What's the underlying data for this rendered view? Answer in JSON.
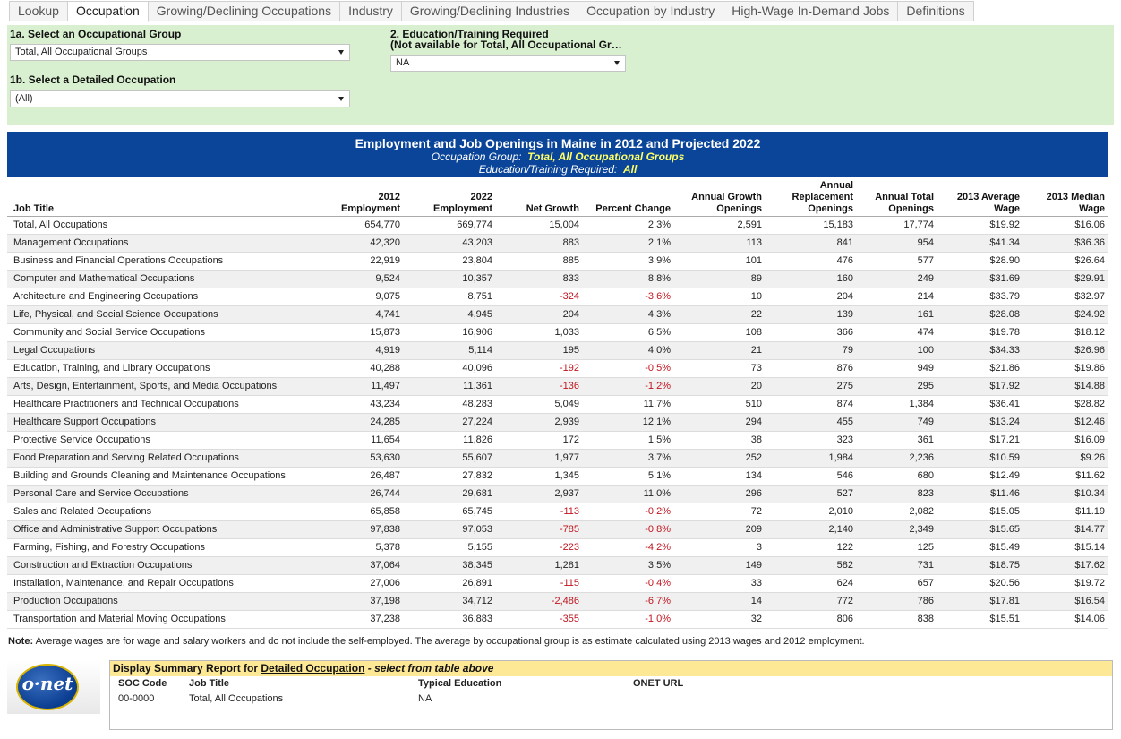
{
  "tabs": [
    "Lookup",
    "Occupation",
    "Growing/Declining Occupations",
    "Industry",
    "Growing/Declining Industries",
    "Occupation by Industry",
    "High-Wage In-Demand Jobs",
    "Definitions"
  ],
  "active_tab": "Occupation",
  "filters": {
    "group_label": "1a. Select an Occupational Group",
    "group_value": "Total, All Occupational Groups",
    "detail_label": "1b. Select a Detailed Occupation",
    "detail_value": "(All)",
    "edu_label_1": "2. Education/Training Required",
    "edu_label_2": "(Not available for Total, All Occupational Gr…",
    "edu_value": "NA"
  },
  "banner": {
    "title": "Employment and Job Openings in Maine in 2012 and Projected 2022",
    "group_prefix": "Occupation Group:",
    "group_value": "Total, All Occupational Groups",
    "edu_prefix": "Education/Training Required:",
    "edu_value": "All"
  },
  "columns": [
    [
      "Job Title"
    ],
    [
      "2012",
      "Employment"
    ],
    [
      "2022",
      "Employment"
    ],
    [
      "Net Growth"
    ],
    [
      "Percent Change"
    ],
    [
      "Annual Growth",
      "Openings"
    ],
    [
      "Annual",
      "Replacement",
      "Openings"
    ],
    [
      "Annual Total",
      "Openings"
    ],
    [
      "2013 Average",
      "Wage"
    ],
    [
      "2013 Median",
      "Wage"
    ]
  ],
  "rows": [
    [
      "Total, All Occupations",
      "654,770",
      "669,774",
      "15,004",
      "2.3%",
      "2,591",
      "15,183",
      "17,774",
      "$19.92",
      "$16.06"
    ],
    [
      "Management Occupations",
      "42,320",
      "43,203",
      "883",
      "2.1%",
      "113",
      "841",
      "954",
      "$41.34",
      "$36.36"
    ],
    [
      "Business and Financial Operations Occupations",
      "22,919",
      "23,804",
      "885",
      "3.9%",
      "101",
      "476",
      "577",
      "$28.90",
      "$26.64"
    ],
    [
      "Computer and Mathematical Occupations",
      "9,524",
      "10,357",
      "833",
      "8.8%",
      "89",
      "160",
      "249",
      "$31.69",
      "$29.91"
    ],
    [
      "Architecture and Engineering Occupations",
      "9,075",
      "8,751",
      "-324",
      "-3.6%",
      "10",
      "204",
      "214",
      "$33.79",
      "$32.97"
    ],
    [
      "Life, Physical, and Social Science Occupations",
      "4,741",
      "4,945",
      "204",
      "4.3%",
      "22",
      "139",
      "161",
      "$28.08",
      "$24.92"
    ],
    [
      "Community and Social Service Occupations",
      "15,873",
      "16,906",
      "1,033",
      "6.5%",
      "108",
      "366",
      "474",
      "$19.78",
      "$18.12"
    ],
    [
      "Legal Occupations",
      "4,919",
      "5,114",
      "195",
      "4.0%",
      "21",
      "79",
      "100",
      "$34.33",
      "$26.96"
    ],
    [
      "Education, Training, and Library Occupations",
      "40,288",
      "40,096",
      "-192",
      "-0.5%",
      "73",
      "876",
      "949",
      "$21.86",
      "$19.86"
    ],
    [
      "Arts, Design, Entertainment, Sports, and Media Occupations",
      "11,497",
      "11,361",
      "-136",
      "-1.2%",
      "20",
      "275",
      "295",
      "$17.92",
      "$14.88"
    ],
    [
      "Healthcare Practitioners and Technical Occupations",
      "43,234",
      "48,283",
      "5,049",
      "11.7%",
      "510",
      "874",
      "1,384",
      "$36.41",
      "$28.82"
    ],
    [
      "Healthcare Support Occupations",
      "24,285",
      "27,224",
      "2,939",
      "12.1%",
      "294",
      "455",
      "749",
      "$13.24",
      "$12.46"
    ],
    [
      "Protective Service Occupations",
      "11,654",
      "11,826",
      "172",
      "1.5%",
      "38",
      "323",
      "361",
      "$17.21",
      "$16.09"
    ],
    [
      "Food Preparation and Serving Related Occupations",
      "53,630",
      "55,607",
      "1,977",
      "3.7%",
      "252",
      "1,984",
      "2,236",
      "$10.59",
      "$9.26"
    ],
    [
      "Building and Grounds Cleaning and Maintenance Occupations",
      "26,487",
      "27,832",
      "1,345",
      "5.1%",
      "134",
      "546",
      "680",
      "$12.49",
      "$11.62"
    ],
    [
      "Personal Care and Service Occupations",
      "26,744",
      "29,681",
      "2,937",
      "11.0%",
      "296",
      "527",
      "823",
      "$11.46",
      "$10.34"
    ],
    [
      "Sales and Related Occupations",
      "65,858",
      "65,745",
      "-113",
      "-0.2%",
      "72",
      "2,010",
      "2,082",
      "$15.05",
      "$11.19"
    ],
    [
      "Office and Administrative Support Occupations",
      "97,838",
      "97,053",
      "-785",
      "-0.8%",
      "209",
      "2,140",
      "2,349",
      "$15.65",
      "$14.77"
    ],
    [
      "Farming, Fishing, and Forestry Occupations",
      "5,378",
      "5,155",
      "-223",
      "-4.2%",
      "3",
      "122",
      "125",
      "$15.49",
      "$15.14"
    ],
    [
      "Construction and Extraction Occupations",
      "37,064",
      "38,345",
      "1,281",
      "3.5%",
      "149",
      "582",
      "731",
      "$18.75",
      "$17.62"
    ],
    [
      "Installation, Maintenance, and Repair Occupations",
      "27,006",
      "26,891",
      "-115",
      "-0.4%",
      "33",
      "624",
      "657",
      "$20.56",
      "$19.72"
    ],
    [
      "Production Occupations",
      "37,198",
      "34,712",
      "-2,486",
      "-6.7%",
      "14",
      "772",
      "786",
      "$17.81",
      "$16.54"
    ],
    [
      "Transportation and Material Moving Occupations",
      "37,238",
      "36,883",
      "-355",
      "-1.0%",
      "32",
      "806",
      "838",
      "$15.51",
      "$14.06"
    ]
  ],
  "note_label": "Note:",
  "note_text": "Average wages are for wage and salary workers and do not include the self-employed. The average by occupational group is as estimate calculated using 2013 wages and 2012 employment.",
  "logo_text": "o·net",
  "summary": {
    "prefix": "Display Summary Report for ",
    "link": "Detailed Occupation",
    "suffix": " - select from table above",
    "headers": [
      "SOC Code",
      "Job Title",
      "Typical Education",
      "ONET URL"
    ],
    "values": [
      "00-0000",
      "Total, All Occupations",
      "NA",
      ""
    ]
  },
  "colors": {
    "banner_bg": "#0b4599",
    "highlight": "#ffff66",
    "filter_bg": "#d8efd0",
    "negative": "#c0151f",
    "summary_header": "#fde896"
  }
}
